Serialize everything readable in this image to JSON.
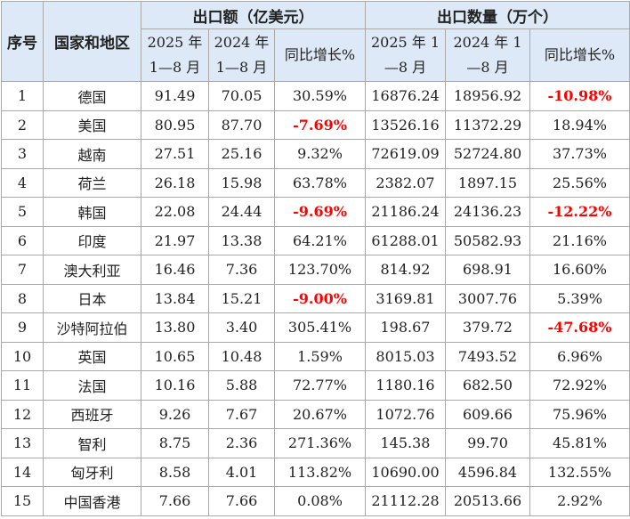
{
  "table": {
    "header": {
      "no": "序号",
      "region": "国家和地区",
      "group_value": "出口额（亿美元）",
      "group_qty": "出口数量（万个）",
      "sub": [
        "2025 年 1—8 月",
        "2024 年 1—8 月",
        "同比增长%",
        "2025 年 1—8 月",
        "2024 年 1—8 月",
        "同比增长%"
      ]
    },
    "rows": [
      [
        "1",
        "德国",
        "91.49",
        "70.05",
        "30.59%",
        "16876.24",
        "18956.92",
        "-10.98%"
      ],
      [
        "2",
        "美国",
        "80.95",
        "87.70",
        "-7.69%",
        "13526.16",
        "11372.29",
        "18.94%"
      ],
      [
        "3",
        "越南",
        "27.51",
        "25.16",
        "9.32%",
        "72619.09",
        "52724.80",
        "37.73%"
      ],
      [
        "4",
        "荷兰",
        "26.18",
        "15.98",
        "63.78%",
        "2382.07",
        "1897.15",
        "25.56%"
      ],
      [
        "5",
        "韩国",
        "22.08",
        "24.44",
        "-9.69%",
        "21186.24",
        "24136.23",
        "-12.22%"
      ],
      [
        "6",
        "印度",
        "21.97",
        "13.38",
        "64.21%",
        "61288.01",
        "50582.93",
        "21.16%"
      ],
      [
        "7",
        "澳大利亚",
        "16.46",
        "7.36",
        "123.70%",
        "814.92",
        "698.91",
        "16.60%"
      ],
      [
        "8",
        "日本",
        "13.84",
        "15.21",
        "-9.00%",
        "3169.81",
        "3007.76",
        "5.39%"
      ],
      [
        "9",
        "沙特阿拉伯",
        "13.80",
        "3.40",
        "305.41%",
        "198.67",
        "379.72",
        "-47.68%"
      ],
      [
        "10",
        "英国",
        "10.65",
        "10.48",
        "1.59%",
        "8015.03",
        "7493.52",
        "6.96%"
      ],
      [
        "11",
        "法国",
        "10.16",
        "5.88",
        "72.77%",
        "1180.16",
        "682.50",
        "72.92%"
      ],
      [
        "12",
        "西班牙",
        "9.26",
        "7.67",
        "20.67%",
        "1072.76",
        "609.66",
        "75.96%"
      ],
      [
        "13",
        "智利",
        "8.75",
        "2.36",
        "271.36%",
        "145.38",
        "99.70",
        "45.81%"
      ],
      [
        "14",
        "匈牙利",
        "8.58",
        "4.01",
        "113.82%",
        "10690.00",
        "4596.84",
        "132.55%"
      ],
      [
        "15",
        "中国香港",
        "7.66",
        "7.66",
        "0.08%",
        "21112.28",
        "20513.66",
        "2.92%"
      ]
    ]
  }
}
